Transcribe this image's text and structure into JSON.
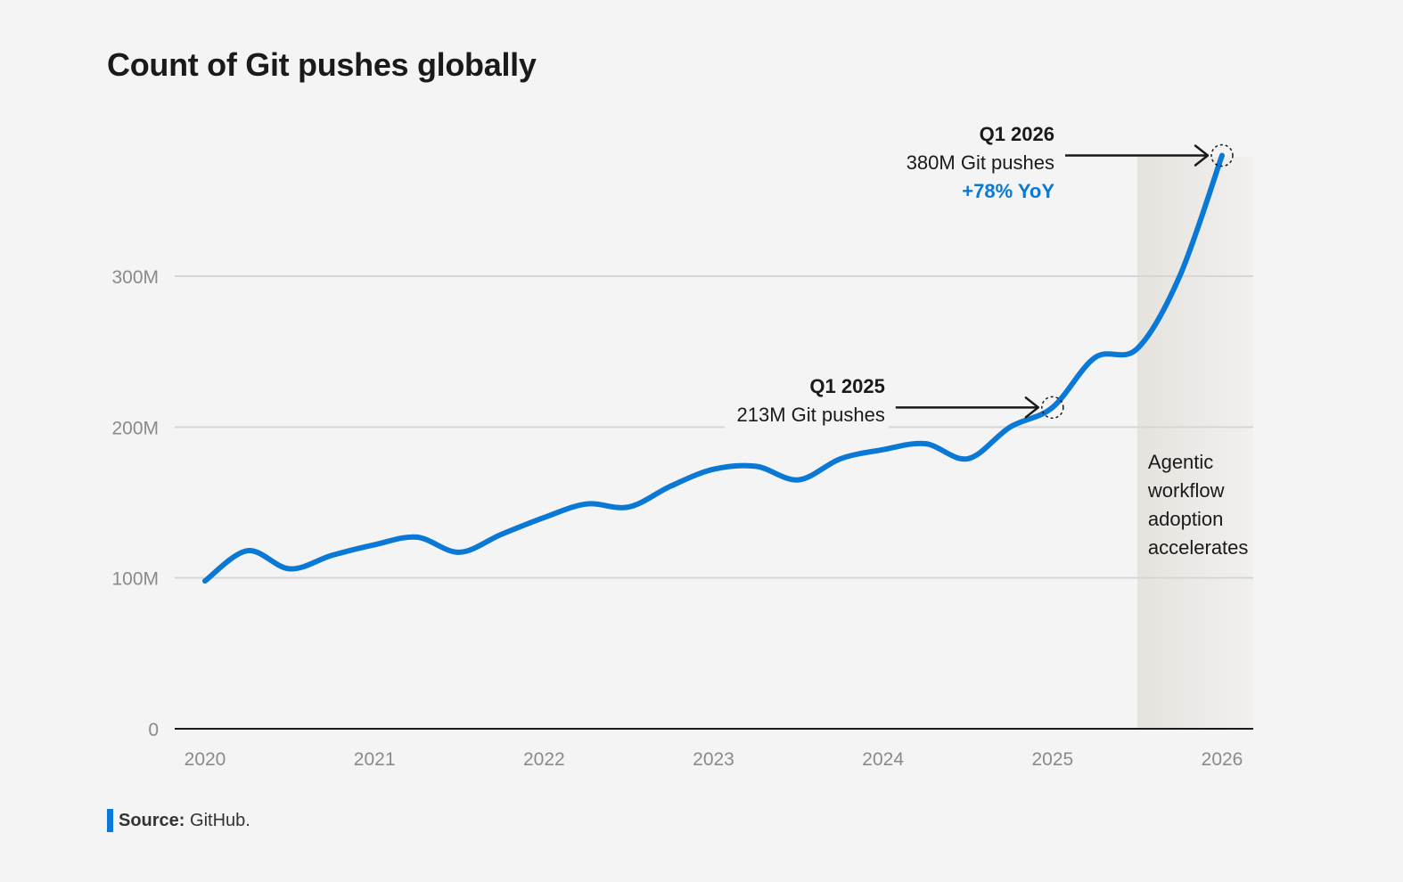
{
  "chart_data": {
    "type": "line",
    "title": "Count of Git pushes globally",
    "xlabel": "",
    "ylabel": "",
    "x_tick_labels": [
      "2020",
      "2021",
      "2022",
      "2023",
      "2024",
      "2025",
      "2026"
    ],
    "y_tick_labels": [
      "0",
      "100M",
      "200M",
      "300M"
    ],
    "y_tick_values": [
      0,
      100,
      200,
      300
    ],
    "y_unit": "M",
    "xlim": [
      2020,
      2026
    ],
    "ylim": [
      0,
      380
    ],
    "grid": "horizontal",
    "series": [
      {
        "color": "#0a78d5",
        "x": [
          2020.0,
          2020.25,
          2020.5,
          2020.75,
          2021.0,
          2021.25,
          2021.5,
          2021.75,
          2022.0,
          2022.25,
          2022.5,
          2022.75,
          2023.0,
          2023.25,
          2023.5,
          2023.75,
          2024.0,
          2024.25,
          2024.5,
          2024.75,
          2025.0,
          2025.25,
          2025.5,
          2025.75,
          2026.0
        ],
        "values": [
          98,
          118,
          106,
          115,
          122,
          127,
          117,
          129,
          140,
          149,
          147,
          161,
          172,
          174,
          165,
          179,
          185,
          189,
          179,
          200,
          213,
          246,
          252,
          300,
          380
        ]
      }
    ],
    "shaded_region": {
      "x_start": 2025.5,
      "x_end": 2026.2,
      "label_lines": [
        "Agentic",
        "workflow",
        "adoption",
        "accelerates"
      ]
    },
    "annotations": [
      {
        "x": 2025.0,
        "y": 213,
        "lines": [
          "Q1 2025",
          "213M Git pushes"
        ]
      },
      {
        "x": 2026.0,
        "y": 380,
        "lines": [
          "Q1 2026",
          "380M Git pushes",
          "+78% YoY"
        ]
      }
    ]
  },
  "source": {
    "label": "Source:",
    "text": "GitHub."
  },
  "colors": {
    "line": "#0a78d5",
    "accent": "#0a78d5",
    "grid": "#d6d6d6",
    "axis": "#1a1a1a",
    "shade": "#e9e7e3",
    "background": "#f4f4f4"
  }
}
